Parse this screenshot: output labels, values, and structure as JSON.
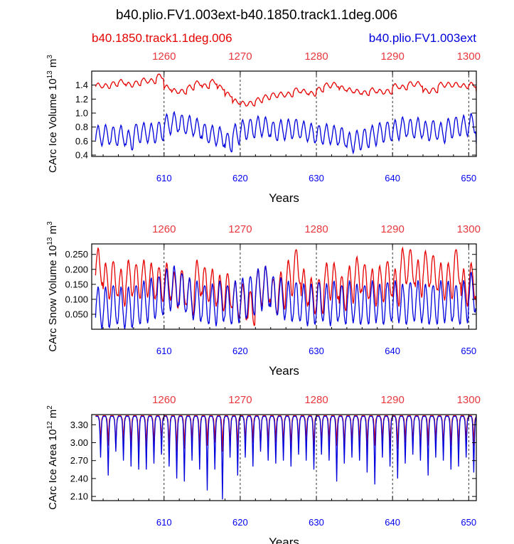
{
  "header": {
    "title": "b40.plio.FV1.003ext-b40.1850.track1.1deg.006",
    "legend_red": "b40.1850.track1.1deg.006",
    "legend_blue": "b40.plio.FV1.003ext"
  },
  "colors": {
    "red": "#e60000",
    "blue": "#0000dd",
    "top_axis": "#e8383d",
    "bottom_axis": "#0000ee"
  },
  "chart_data": [
    {
      "type": "line",
      "name": "ice-volume",
      "ylabel_main": "CArc Ice Volume 10",
      "ylabel_exp": "13",
      "ylabel_unit": " m",
      "ylabel_unit_exp": "3",
      "xlabel": "Years",
      "ylim": [
        0.38,
        1.6
      ],
      "yticks": [
        0.4,
        0.6,
        0.8,
        1.0,
        1.2,
        1.4
      ],
      "ytick_labels": [
        "0.4",
        "0.6",
        "0.8",
        "1.0",
        "1.2",
        "1.4"
      ],
      "xlim_bottom": [
        600.5,
        651
      ],
      "xticks_bottom": [
        610,
        620,
        630,
        640,
        650
      ],
      "xtick_labels_bottom": [
        "610",
        "620",
        "630",
        "640",
        "650"
      ],
      "xticks_top": [
        1260,
        1270,
        1280,
        1290,
        1300
      ],
      "xtick_labels_top": [
        "1260",
        "1270",
        "1280",
        "1290",
        "1300"
      ],
      "series": [
        {
          "name": "b40.1850.track1.1deg.006",
          "color": "red",
          "seasonal_amplitude": 0.07,
          "annual_max": [
            1.43,
            1.42,
            1.45,
            1.48,
            1.44,
            1.46,
            1.5,
            1.49,
            1.56,
            1.4,
            1.35,
            1.34,
            1.4,
            1.46,
            1.42,
            1.48,
            1.4,
            1.3,
            1.2,
            1.17,
            1.17,
            1.22,
            1.26,
            1.29,
            1.3,
            1.3,
            1.36,
            1.34,
            1.31,
            1.37,
            1.43,
            1.44,
            1.39,
            1.36,
            1.34,
            1.32,
            1.36,
            1.34,
            1.34,
            1.42,
            1.4,
            1.45,
            1.45,
            1.35,
            1.36,
            1.44,
            1.44,
            1.44,
            1.42,
            1.44,
            1.36
          ]
        },
        {
          "name": "b40.plio.FV1.003ext",
          "color": "blue",
          "seasonal_amplitude": 0.28,
          "annual_max": [
            0.82,
            0.83,
            0.81,
            0.82,
            0.75,
            0.85,
            0.86,
            0.85,
            0.88,
            0.98,
            1.01,
            0.98,
            0.96,
            0.92,
            0.85,
            0.82,
            0.8,
            0.72,
            0.84,
            0.9,
            0.92,
            0.95,
            0.94,
            0.88,
            0.9,
            0.91,
            0.92,
            0.88,
            0.85,
            0.83,
            0.84,
            0.82,
            0.8,
            0.72,
            0.75,
            0.78,
            0.82,
            0.86,
            0.88,
            0.9,
            0.94,
            0.92,
            0.93,
            0.88,
            0.9,
            0.86,
            0.92,
            0.95,
            0.96,
            0.99,
            0.78
          ]
        }
      ]
    },
    {
      "type": "line",
      "name": "snow-volume",
      "ylabel_main": "CArc Snow Volume 10",
      "ylabel_exp": "13",
      "ylabel_unit": " m",
      "ylabel_unit_exp": "3",
      "xlabel": "Years",
      "ylim": [
        0.0,
        0.285
      ],
      "yticks": [
        0.05,
        0.1,
        0.15,
        0.2,
        0.25
      ],
      "ytick_labels": [
        "0.050",
        "0.100",
        "0.150",
        "0.200",
        "0.250"
      ],
      "xlim_bottom": [
        600.5,
        651
      ],
      "xticks_bottom": [
        610,
        620,
        630,
        640,
        650
      ],
      "xtick_labels_bottom": [
        "610",
        "620",
        "630",
        "640",
        "650"
      ],
      "xticks_top": [
        1260,
        1270,
        1280,
        1290,
        1300
      ],
      "xtick_labels_top": [
        "1260",
        "1270",
        "1280",
        "1290",
        "1300"
      ],
      "series": [
        {
          "name": "b40.1850.track1.1deg.006",
          "color": "red",
          "seasonal_amplitude": 0.12,
          "annual_max": [
            0.27,
            0.22,
            0.23,
            0.2,
            0.23,
            0.22,
            0.23,
            0.22,
            0.21,
            0.22,
            0.19,
            0.2,
            0.17,
            0.23,
            0.21,
            0.2,
            0.18,
            0.19,
            0.16,
            0.15,
            0.13,
            0.2,
            0.21,
            0.17,
            0.19,
            0.23,
            0.27,
            0.2,
            0.17,
            0.17,
            0.22,
            0.22,
            0.18,
            0.21,
            0.24,
            0.22,
            0.2,
            0.21,
            0.23,
            0.2,
            0.27,
            0.27,
            0.23,
            0.26,
            0.25,
            0.22,
            0.22,
            0.27,
            0.2,
            0.22,
            0.17
          ]
        },
        {
          "name": "b40.plio.FV1.003ext",
          "color": "blue",
          "seasonal_amplitude": 0.135,
          "annual_max": [
            0.14,
            0.14,
            0.15,
            0.14,
            0.14,
            0.15,
            0.16,
            0.17,
            0.18,
            0.2,
            0.21,
            0.19,
            0.17,
            0.16,
            0.15,
            0.15,
            0.16,
            0.15,
            0.16,
            0.17,
            0.18,
            0.2,
            0.21,
            0.18,
            0.17,
            0.16,
            0.16,
            0.15,
            0.15,
            0.16,
            0.15,
            0.16,
            0.15,
            0.16,
            0.15,
            0.15,
            0.16,
            0.15,
            0.16,
            0.16,
            0.15,
            0.16,
            0.16,
            0.15,
            0.15,
            0.16,
            0.16,
            0.15,
            0.16,
            0.19,
            0.17
          ]
        }
      ]
    },
    {
      "type": "line",
      "name": "ice-area",
      "ylabel_main": "CArc Ice Area 10",
      "ylabel_exp": "12",
      "ylabel_unit": " m",
      "ylabel_unit_exp": "2",
      "xlabel": "Years",
      "ylim": [
        2.03,
        3.47
      ],
      "yticks": [
        2.1,
        2.4,
        2.7,
        3.0,
        3.3
      ],
      "ytick_labels": [
        "2.10",
        "2.40",
        "2.70",
        "3.00",
        "3.30"
      ],
      "xlim_bottom": [
        600.5,
        651
      ],
      "xticks_bottom": [
        610,
        620,
        630,
        640,
        650
      ],
      "xtick_labels_bottom": [
        "610",
        "620",
        "630",
        "640",
        "650"
      ],
      "xticks_top": [
        1260,
        1270,
        1280,
        1290,
        1300
      ],
      "xtick_labels_top": [
        "1260",
        "1270",
        "1280",
        "1290",
        "1300"
      ],
      "series": [
        {
          "name": "b40.1850.track1.1deg.006",
          "color": "red",
          "max_value": 3.45,
          "annual_min": [
            3.0,
            2.95,
            2.9,
            3.0,
            2.95,
            2.85,
            2.9,
            2.95,
            3.0,
            2.9,
            2.85,
            2.9,
            2.95,
            2.9,
            2.95,
            3.0,
            2.85,
            2.95,
            2.9,
            2.95,
            3.0,
            2.9,
            2.95,
            3.0,
            2.95,
            2.9,
            2.95,
            3.0,
            2.9,
            2.95,
            3.0,
            2.95,
            2.9,
            2.95,
            3.0,
            2.9,
            2.95,
            3.0,
            2.95,
            2.9,
            3.0,
            2.95,
            2.9,
            2.95,
            3.0,
            2.9,
            2.95,
            2.9,
            3.0,
            2.95,
            3.0
          ]
        },
        {
          "name": "b40.plio.FV1.003ext",
          "color": "blue",
          "max_value": 3.44,
          "annual_min": [
            2.75,
            2.45,
            2.85,
            2.7,
            2.6,
            2.55,
            2.55,
            2.65,
            2.8,
            2.6,
            2.4,
            2.35,
            2.7,
            2.55,
            2.2,
            2.55,
            2.05,
            2.75,
            2.45,
            2.75,
            2.6,
            2.85,
            2.7,
            2.65,
            2.7,
            2.6,
            2.8,
            2.7,
            2.55,
            2.8,
            2.7,
            2.35,
            2.65,
            2.75,
            2.7,
            2.5,
            2.3,
            2.75,
            2.6,
            2.4,
            2.65,
            2.8,
            2.7,
            2.45,
            2.75,
            2.7,
            2.55,
            2.6,
            2.75,
            2.5,
            2.95
          ]
        }
      ]
    }
  ]
}
